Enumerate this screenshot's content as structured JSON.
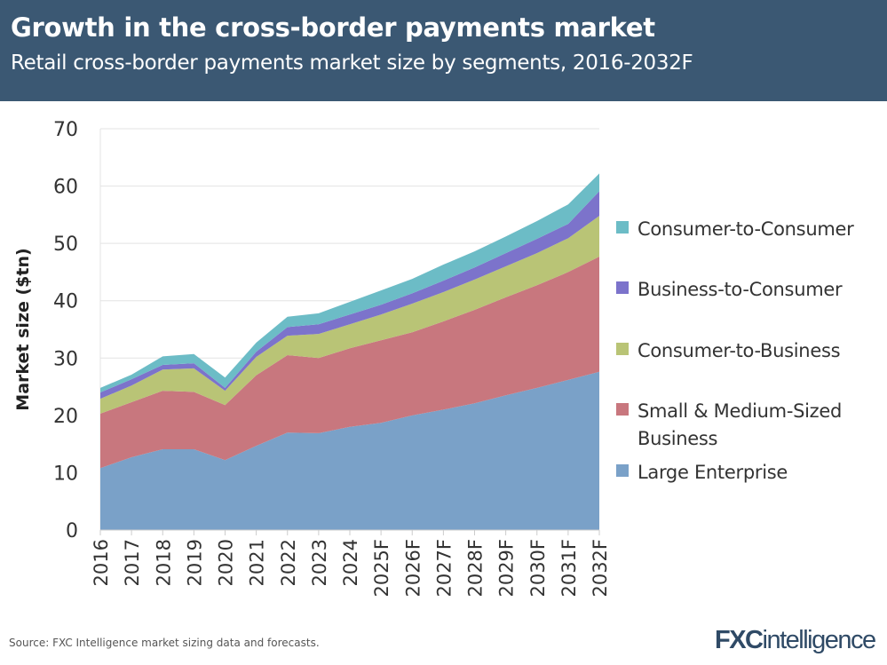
{
  "header": {
    "title": "Growth in the cross-border payments market",
    "subtitle": "Retail cross-border payments market size by segments, 2016-2032F"
  },
  "footer": {
    "source": "Source: FXC Intelligence market sizing data and forecasts.",
    "logo": "FXCintelligence"
  },
  "chart_data": {
    "type": "area",
    "stacked": true,
    "title": "Growth in the cross-border payments market",
    "subtitle": "Retail cross-border payments market size by segments, 2016-2032F",
    "xlabel": "",
    "ylabel": "Market size ($tn)",
    "ylim": [
      0,
      70
    ],
    "yticks": [
      0,
      10,
      20,
      30,
      40,
      50,
      60,
      70
    ],
    "grid": true,
    "legend_position": "right",
    "categories": [
      "2016",
      "2017",
      "2018",
      "2019",
      "2020",
      "2021",
      "2022",
      "2023",
      "2024",
      "2025F",
      "2026F",
      "2027F",
      "2028F",
      "2029F",
      "2030F",
      "2031F",
      "2032F"
    ],
    "series": [
      {
        "name": "Large Enterprise",
        "color": "#7aa1c8",
        "values": [
          10.8,
          12.7,
          14.1,
          14.1,
          12.2,
          14.7,
          17.0,
          16.9,
          18.0,
          18.7,
          20.0,
          21.0,
          22.1,
          23.5,
          24.8,
          26.2,
          27.6
        ]
      },
      {
        "name": "Small & Medium-Sized Business",
        "color": "#c8777e",
        "values": [
          9.5,
          9.6,
          10.2,
          10.0,
          9.6,
          12.3,
          13.5,
          13.1,
          13.7,
          14.4,
          14.5,
          15.4,
          16.3,
          17.1,
          17.9,
          18.8,
          20.1
        ]
      },
      {
        "name": "Consumer-to-Business",
        "color": "#b9c476",
        "values": [
          2.6,
          2.9,
          3.7,
          4.1,
          2.5,
          3.2,
          3.4,
          4.2,
          4.2,
          4.5,
          5.0,
          5.1,
          5.3,
          5.4,
          5.6,
          5.9,
          7.1
        ]
      },
      {
        "name": "Business-to-Consumer",
        "color": "#7c73cb",
        "values": [
          1.1,
          1.1,
          0.8,
          0.9,
          0.5,
          0.9,
          1.5,
          1.7,
          1.7,
          1.7,
          1.8,
          2.0,
          2.1,
          2.3,
          2.5,
          2.5,
          4.3
        ]
      },
      {
        "name": "Consumer-to-Consumer",
        "color": "#6cbcc6",
        "values": [
          0.8,
          0.8,
          1.5,
          1.6,
          1.8,
          1.6,
          1.8,
          1.9,
          2.2,
          2.5,
          2.5,
          2.8,
          2.8,
          2.9,
          3.1,
          3.4,
          3.1
        ]
      }
    ],
    "legend_order": [
      "Consumer-to-Consumer",
      "Business-to-Consumer",
      "Consumer-to-Business",
      "Small & Medium-Sized Business",
      "Large Enterprise"
    ]
  }
}
